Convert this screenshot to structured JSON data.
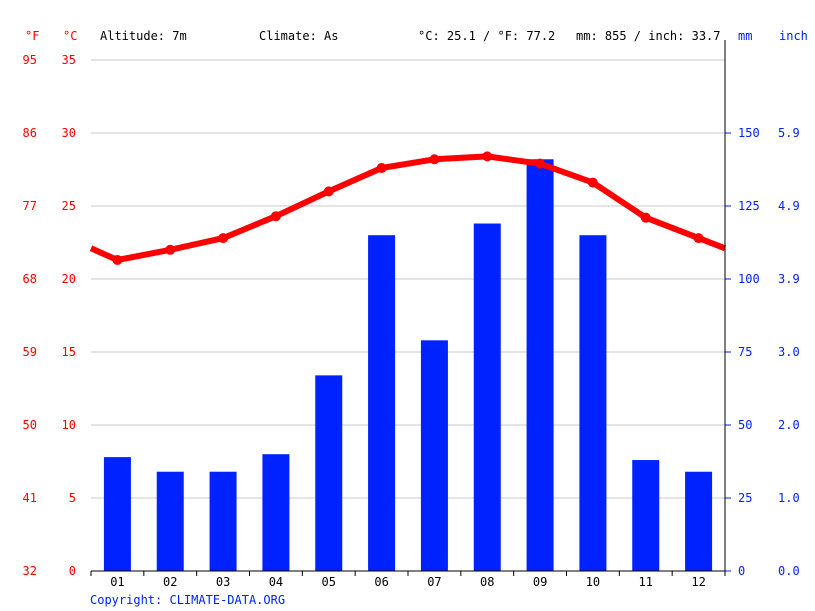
{
  "header": {
    "f_unit": "°F",
    "c_unit": "°C",
    "altitude": "Altitude: 7m",
    "climate": "Climate: As",
    "temp_summary": "°C: 25.1 / °F: 77.2",
    "precip_summary": "mm: 855 / inch: 33.7",
    "mm_unit": "mm",
    "inch_unit": "inch"
  },
  "copyright": "Copyright: CLIMATE-DATA.ORG",
  "colors": {
    "temperature": "#ff0000",
    "precipitation": "#0022ff",
    "grid": "#c8c8c8"
  },
  "chart_data": {
    "type": "bar",
    "categories": [
      "01",
      "02",
      "03",
      "04",
      "05",
      "06",
      "07",
      "08",
      "09",
      "10",
      "11",
      "12"
    ],
    "series": [
      {
        "type": "bar",
        "axis": "right",
        "unit": "mm",
        "values": [
          39,
          34,
          34,
          40,
          67,
          115,
          79,
          119,
          141,
          115,
          38,
          34
        ]
      },
      {
        "type": "line",
        "axis": "left",
        "unit": "°C",
        "values": [
          21.3,
          22.0,
          22.8,
          24.3,
          26.0,
          27.6,
          28.2,
          28.4,
          27.9,
          26.6,
          24.2,
          22.8
        ],
        "edge_start": 22.1,
        "edge_end": 22.1
      }
    ],
    "left_axis": {
      "label": "°C",
      "ylim": [
        0,
        35
      ],
      "ticks_c": [
        "0",
        "5",
        "10",
        "15",
        "20",
        "25",
        "30",
        "35"
      ],
      "ticks_f": [
        "32",
        "41",
        "50",
        "59",
        "68",
        "77",
        "86",
        "95"
      ]
    },
    "right_axis": {
      "label": "mm",
      "ylim": [
        0,
        175
      ],
      "ticks_mm": [
        "0",
        "25",
        "50",
        "75",
        "100",
        "125",
        "150"
      ],
      "ticks_inch": [
        "0.0",
        "1.0",
        "2.0",
        "3.0",
        "3.9",
        "4.9",
        "5.9"
      ]
    },
    "grid": true
  }
}
